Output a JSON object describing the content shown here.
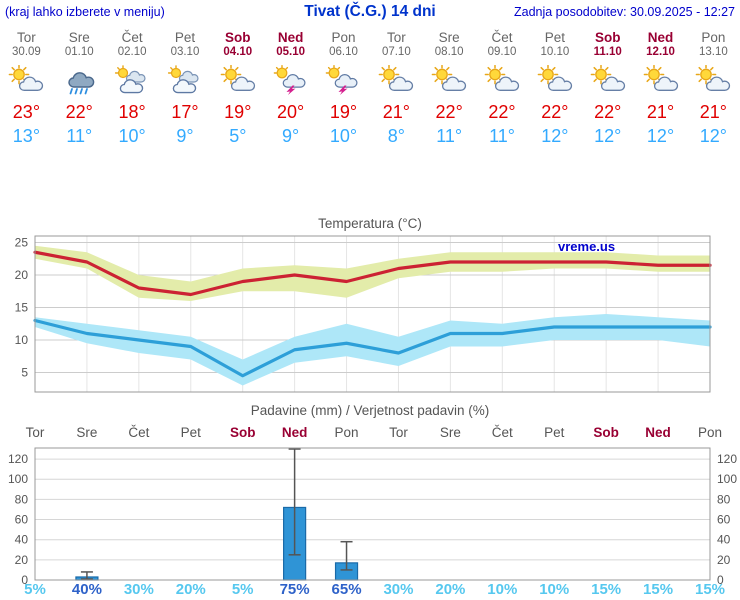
{
  "header": {
    "note": "(kraj lahko izberete v meniju)",
    "title": "Tivat (Č.G.) 14 dni",
    "updated": "Zadnja posodobitev: 30.09.2025 - 12:27"
  },
  "days": [
    {
      "name": "Tor",
      "date": "30.09",
      "weekend": false,
      "icon": "partly-cloudy",
      "tmax": "23°",
      "tmin": "13°"
    },
    {
      "name": "Sre",
      "date": "01.10",
      "weekend": false,
      "icon": "rain",
      "tmax": "22°",
      "tmin": "11°"
    },
    {
      "name": "Čet",
      "date": "02.10",
      "weekend": false,
      "icon": "cloudy",
      "tmax": "18°",
      "tmin": "10°"
    },
    {
      "name": "Pet",
      "date": "03.10",
      "weekend": false,
      "icon": "cloudy",
      "tmax": "17°",
      "tmin": "9°"
    },
    {
      "name": "Sob",
      "date": "04.10",
      "weekend": true,
      "icon": "partly-cloudy",
      "tmax": "19°",
      "tmin": "5°"
    },
    {
      "name": "Ned",
      "date": "05.10",
      "weekend": true,
      "icon": "thunder",
      "tmax": "20°",
      "tmin": "9°"
    },
    {
      "name": "Pon",
      "date": "06.10",
      "weekend": false,
      "icon": "thunder",
      "tmax": "19°",
      "tmin": "10°"
    },
    {
      "name": "Tor",
      "date": "07.10",
      "weekend": false,
      "icon": "partly-cloudy",
      "tmax": "21°",
      "tmin": "8°"
    },
    {
      "name": "Sre",
      "date": "08.10",
      "weekend": false,
      "icon": "partly-cloudy",
      "tmax": "22°",
      "tmin": "11°"
    },
    {
      "name": "Čet",
      "date": "09.10",
      "weekend": false,
      "icon": "partly-cloudy",
      "tmax": "22°",
      "tmin": "11°"
    },
    {
      "name": "Pet",
      "date": "10.10",
      "weekend": false,
      "icon": "partly-cloudy",
      "tmax": "22°",
      "tmin": "12°"
    },
    {
      "name": "Sob",
      "date": "11.10",
      "weekend": true,
      "icon": "partly-cloudy",
      "tmax": "22°",
      "tmin": "12°"
    },
    {
      "name": "Ned",
      "date": "12.10",
      "weekend": true,
      "icon": "partly-cloudy",
      "tmax": "21°",
      "tmin": "12°"
    },
    {
      "name": "Pon",
      "date": "13.10",
      "weekend": false,
      "icon": "partly-cloudy",
      "tmax": "21°",
      "tmin": "12°"
    }
  ],
  "chart_data": [
    {
      "type": "line",
      "title": "Temperatura (°C)",
      "watermark": "vreme.us",
      "x_labels": [
        "Tor",
        "Sre",
        "Čet",
        "Pet",
        "Sob",
        "Ned",
        "Pon",
        "Tor",
        "Sre",
        "Čet",
        "Pet",
        "Sob",
        "Ned",
        "Pon"
      ],
      "ylim": [
        2,
        26
      ],
      "yticks": [
        5,
        10,
        15,
        20,
        25
      ],
      "series": [
        {
          "name": "Tmax",
          "color": "#cc2233",
          "band_color": "#e3ecaa",
          "values": [
            23.5,
            22,
            18,
            17,
            19,
            20,
            19,
            21,
            22,
            22,
            22,
            22,
            21.5,
            21.5
          ],
          "band_upper": [
            24.5,
            23.5,
            20,
            19,
            21,
            21.5,
            21,
            22.5,
            23.5,
            23.5,
            23.5,
            23.5,
            23,
            23
          ],
          "band_lower": [
            22.5,
            21,
            16.5,
            16,
            17.5,
            17.5,
            16.5,
            19.5,
            20.5,
            20.5,
            21,
            21,
            20.5,
            20.5
          ]
        },
        {
          "name": "Tmin",
          "color": "#2d9fd8",
          "band_color": "#aee7f8",
          "values": [
            13,
            11,
            10,
            9,
            4.5,
            8.5,
            9.5,
            8,
            11,
            11,
            12,
            12,
            12,
            12
          ],
          "band_upper": [
            13.5,
            12.5,
            11.5,
            10.5,
            7,
            10.5,
            12.5,
            10.5,
            13,
            12.5,
            13.5,
            14,
            13.5,
            13
          ],
          "band_lower": [
            12,
            9.5,
            8,
            7,
            3,
            6.5,
            7.5,
            6,
            9,
            9,
            10,
            10,
            10,
            9
          ]
        }
      ]
    },
    {
      "type": "bar",
      "title": "Padavine (mm) / Verjetnost padavin (%)",
      "categories": [
        "Tor",
        "Sre",
        "Čet",
        "Pet",
        "Sob",
        "Ned",
        "Pon",
        "Tor",
        "Sre",
        "Čet",
        "Pet",
        "Sob",
        "Ned",
        "Pon"
      ],
      "weekend": [
        false,
        false,
        false,
        false,
        true,
        true,
        false,
        false,
        false,
        false,
        false,
        true,
        true,
        false
      ],
      "values": [
        0,
        3,
        0,
        0,
        0,
        72,
        17,
        0,
        0,
        0,
        0,
        0,
        0,
        0
      ],
      "whisker_low": [
        0,
        1,
        0,
        0,
        0,
        25,
        10,
        0,
        0,
        0,
        0,
        0,
        0,
        0
      ],
      "whisker_high": [
        0,
        8,
        0,
        0,
        0,
        130,
        38,
        0,
        0,
        0,
        0,
        0,
        0,
        0
      ],
      "probabilities": [
        {
          "text": "5%",
          "strong": false
        },
        {
          "text": "40%",
          "strong": true
        },
        {
          "text": "30%",
          "strong": false
        },
        {
          "text": "20%",
          "strong": false
        },
        {
          "text": "5%",
          "strong": false
        },
        {
          "text": "75%",
          "strong": true
        },
        {
          "text": "65%",
          "strong": true
        },
        {
          "text": "30%",
          "strong": false
        },
        {
          "text": "20%",
          "strong": false
        },
        {
          "text": "10%",
          "strong": false
        },
        {
          "text": "10%",
          "strong": false
        },
        {
          "text": "15%",
          "strong": false
        },
        {
          "text": "15%",
          "strong": false
        },
        {
          "text": "15%",
          "strong": false
        }
      ],
      "ylim": [
        0,
        131
      ],
      "yticks": [
        0,
        20,
        40,
        60,
        80,
        100,
        120
      ],
      "bar_fill": "#2f94d6",
      "bar_stroke": "#1a6aa8"
    }
  ],
  "colors": {
    "header_blue": "#0000cc",
    "title_blue": "#0033cc",
    "day_gray": "#666666",
    "weekend_red": "#990033",
    "tmax_red": "#e00000",
    "tmin_blue": "#33aaff",
    "prob_normal": "#56c8ef",
    "prob_strong": "#2e62c9",
    "axis_text": "#555555",
    "frame": "#999999"
  }
}
